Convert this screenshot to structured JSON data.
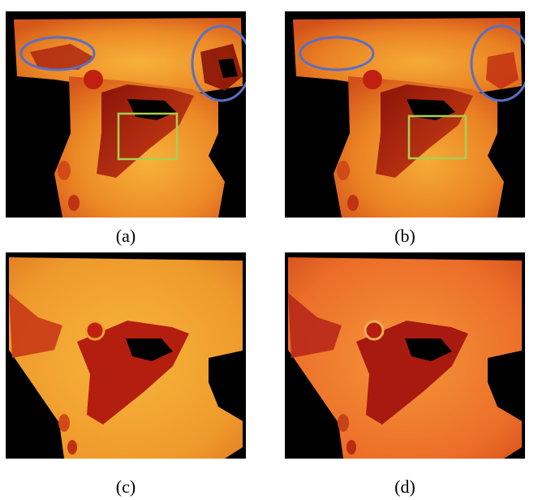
{
  "panels": [
    {
      "id": "a",
      "caption": "(a)",
      "annotated": true
    },
    {
      "id": "b",
      "caption": "(b)",
      "annotated": true
    },
    {
      "id": "c",
      "caption": "(c)",
      "annotated": false
    },
    {
      "id": "d",
      "caption": "(d)",
      "annotated": false
    }
  ],
  "colors": {
    "background": "#000000",
    "surface_bright": "#f2a630",
    "surface_mid": "#e8701e",
    "surface_dark": "#b01c10",
    "ellipse_outline": "#5a6fc4",
    "box_outline": "#a8d050"
  }
}
